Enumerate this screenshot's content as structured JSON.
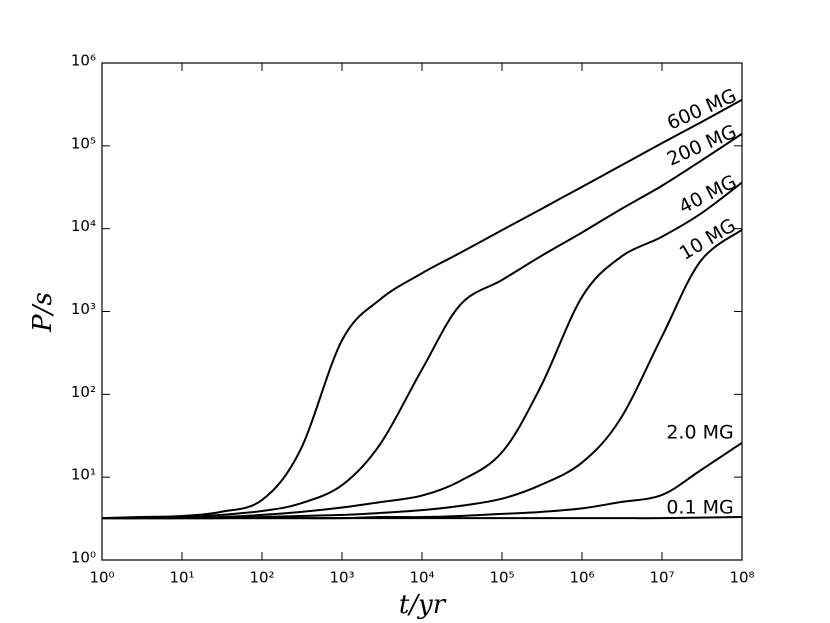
{
  "chart_data": {
    "type": "line",
    "xlabel": "t/yr",
    "ylabel": "P/s",
    "xscale": "log",
    "yscale": "log",
    "x": [
      1,
      3,
      10,
      30,
      100,
      300,
      1000,
      3000,
      10000,
      30000,
      100000,
      300000,
      1000000,
      3000000,
      10000000,
      30000000,
      100000000
    ],
    "series": [
      {
        "name": "600 MG",
        "color": "#000000",
        "values": [
          3.2,
          3.3,
          3.4,
          3.8,
          5.3,
          21,
          450,
          1400,
          2900,
          5100,
          9600,
          17000,
          32000,
          57000,
          108000,
          190000,
          360000
        ]
      },
      {
        "name": "200 MG",
        "color": "#000000",
        "values": [
          3.2,
          3.2,
          3.3,
          3.5,
          3.9,
          4.8,
          8,
          25,
          200,
          1200,
          2400,
          4600,
          9000,
          17000,
          33000,
          65000,
          140000
        ]
      },
      {
        "name": "40 MG",
        "color": "#000000",
        "values": [
          3.2,
          3.2,
          3.2,
          3.3,
          3.5,
          3.8,
          4.3,
          5,
          6,
          9,
          20,
          120,
          1500,
          4500,
          8000,
          15000,
          36000
        ]
      },
      {
        "name": "10 MG",
        "color": "#000000",
        "values": [
          3.2,
          3.2,
          3.2,
          3.2,
          3.3,
          3.4,
          3.5,
          3.7,
          4,
          4.5,
          5.5,
          8,
          15,
          50,
          500,
          4000,
          9700
        ]
      },
      {
        "name": "2.0 MG",
        "color": "#000000",
        "values": [
          3.2,
          3.2,
          3.2,
          3.2,
          3.2,
          3.2,
          3.2,
          3.3,
          3.3,
          3.4,
          3.6,
          3.8,
          4.2,
          5,
          6.1,
          12,
          26
        ]
      },
      {
        "name": "0.1 MG",
        "color": "#000000",
        "values": [
          3.2,
          3.2,
          3.2,
          3.2,
          3.2,
          3.2,
          3.2,
          3.2,
          3.2,
          3.2,
          3.2,
          3.2,
          3.2,
          3.2,
          3.2,
          3.25,
          3.3
        ]
      }
    ],
    "xlim": [
      1,
      100000000
    ],
    "ylim": [
      1,
      1000000
    ],
    "xticks": [
      {
        "value": 1,
        "label": "10⁰"
      },
      {
        "value": 10,
        "label": "10¹"
      },
      {
        "value": 100,
        "label": "10²"
      },
      {
        "value": 1000,
        "label": "10³"
      },
      {
        "value": 10000,
        "label": "10⁴"
      },
      {
        "value": 100000,
        "label": "10⁵"
      },
      {
        "value": 1000000,
        "label": "10⁶"
      },
      {
        "value": 10000000,
        "label": "10⁷"
      },
      {
        "value": 100000000,
        "label": "10⁸"
      }
    ],
    "yticks": [
      {
        "value": 1,
        "label": "10⁰"
      },
      {
        "value": 10,
        "label": "10¹"
      },
      {
        "value": 100,
        "label": "10²"
      },
      {
        "value": 1000,
        "label": "10³"
      },
      {
        "value": 10000,
        "label": "10⁴"
      },
      {
        "value": 100000,
        "label": "10⁵"
      },
      {
        "value": 1000000,
        "label": "10⁶"
      }
    ]
  }
}
